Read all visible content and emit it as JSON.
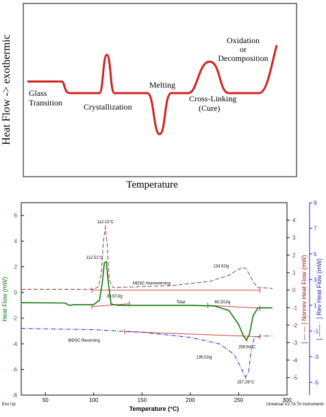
{
  "top_chart": {
    "ylabel": "Heat Flow -> exothermic",
    "xlabel": "Temperature",
    "annotations": {
      "glass": [
        "Glass",
        "Transition"
      ],
      "cryst": "Crystallization",
      "melt": "Melting",
      "cross": [
        "Cross-Linking",
        "(Cure)"
      ],
      "oxid": [
        "Oxidation",
        "or",
        "Decomposition"
      ]
    },
    "curve_color": "#d42020"
  },
  "chart_data": [
    {
      "type": "line",
      "title": "",
      "xlabel": "Temperature",
      "ylabel": "Heat Flow -> exothermic",
      "schematic": true,
      "series": [
        {
          "name": "",
          "points": [
            [
              0,
              0
            ],
            [
              7,
              0
            ],
            [
              9,
              -0.5
            ],
            [
              14,
              -0.5
            ],
            [
              16,
              2.8
            ],
            [
              18,
              -0.5
            ],
            [
              26,
              -0.5
            ],
            [
              29,
              -4.2
            ],
            [
              32,
              -0.5
            ],
            [
              38,
              -0.5
            ],
            [
              45,
              2.0
            ],
            [
              51,
              -0.5
            ],
            [
              55,
              -0.5
            ],
            [
              60,
              4.5
            ]
          ]
        }
      ]
    },
    {
      "type": "line",
      "xlabel": "Temperature (°C)",
      "ylabel": "Heat Flow (mW)",
      "ylabel_right1": "[ — — ] Nonrev Heat Flow (mW)",
      "ylabel_right2": "[ —— · ] Rev Heat Flow (mW)",
      "xlim": [
        25,
        300
      ],
      "ylim": [
        -8,
        7
      ],
      "ylim_right1": [
        -6,
        5
      ],
      "ylim_right2": [
        -6,
        9
      ],
      "x_ticks": [
        "50",
        "100",
        "150",
        "200",
        "250",
        "300"
      ],
      "y_ticks": [
        "6",
        "4",
        "2",
        "0",
        "-2",
        "-4",
        "-6",
        "-8"
      ],
      "y_ticks_right1": [
        "4",
        "3",
        "2",
        "1",
        "0",
        "-1",
        "-2",
        "-3",
        "-4",
        "-5"
      ],
      "y_ticks_right2": [
        "9",
        "7",
        "5",
        "3",
        "1",
        "-1",
        "-3",
        "-5"
      ],
      "footer_left": "Exo Up",
      "footer_right": "Universal V2.7A TA Instruments",
      "series": [
        {
          "name": "Total",
          "axis": "left",
          "color": "#0a7a0a",
          "points": [
            [
              25,
              -0.8
            ],
            [
              70,
              -0.82
            ],
            [
              75,
              -1.0
            ],
            [
              80,
              -0.95
            ],
            [
              100,
              -0.95
            ],
            [
              106,
              -0.6
            ],
            [
              109,
              0.8
            ],
            [
              111,
              2.3
            ],
            [
              113,
              2.4
            ],
            [
              115,
              0.8
            ],
            [
              118,
              -0.9
            ],
            [
              125,
              -1.0
            ],
            [
              140,
              -1.0
            ],
            [
              200,
              -1.0
            ],
            [
              225,
              -1.05
            ],
            [
              240,
              -1.4
            ],
            [
              250,
              -2.5
            ],
            [
              255,
              -3.4
            ],
            [
              258,
              -3.7
            ],
            [
              261,
              -3.3
            ],
            [
              265,
              -1.8
            ],
            [
              270,
              -1.2
            ],
            [
              285,
              -1.2
            ]
          ]
        },
        {
          "name": "MDSC Nonreversing",
          "axis": "right1",
          "color": "#8b3a3a",
          "points": [
            [
              25,
              0.05
            ],
            [
              100,
              0.05
            ],
            [
              105,
              0.2
            ],
            [
              108,
              1.0
            ],
            [
              110,
              2.8
            ],
            [
              112,
              3.6
            ],
            [
              114,
              2.6
            ],
            [
              116,
              0.6
            ],
            [
              120,
              0.15
            ],
            [
              180,
              0.25
            ],
            [
              220,
              0.5
            ],
            [
              240,
              0.85
            ],
            [
              250,
              1.2
            ],
            [
              255,
              1.3
            ],
            [
              258,
              1.2
            ],
            [
              262,
              0.8
            ],
            [
              266,
              0.4
            ],
            [
              270,
              0.15
            ],
            [
              285,
              0.1
            ]
          ]
        },
        {
          "name": "MDSC Reversing",
          "axis": "right2",
          "color": "#2020c8",
          "points": [
            [
              25,
              -0.8
            ],
            [
              60,
              -0.85
            ],
            [
              100,
              -0.9
            ],
            [
              150,
              -1.1
            ],
            [
              200,
              -1.5
            ],
            [
              230,
              -2.0
            ],
            [
              245,
              -2.8
            ],
            [
              252,
              -3.8
            ],
            [
              257,
              -4.6
            ],
            [
              260,
              -4.3
            ],
            [
              263,
              -2.5
            ],
            [
              266,
              -1.6
            ],
            [
              272,
              -1.4
            ],
            [
              285,
              -1.4
            ]
          ]
        },
        {
          "name": "baselines",
          "color": "#d04040",
          "baselines": [
            {
              "axis": "right1",
              "x1": 98,
              "y1": 0.0,
              "x2": 272,
              "y2": 0.0
            },
            {
              "axis": "left",
              "x1": 98,
              "y1": -1.1,
              "x2": 137,
              "y2": -0.88
            },
            {
              "axis": "left",
              "x1": 218,
              "y1": -1.0,
              "x2": 272,
              "y2": -1.22
            },
            {
              "axis": "right2",
              "x1": 132,
              "y1": -1.05,
              "x2": 272,
              "y2": -1.45
            }
          ]
        }
      ],
      "annotations": [
        {
          "text": "112.13°C",
          "axis": "right1",
          "x": 112.13,
          "y": 3.6
        },
        {
          "text": "112.51°C",
          "axis": "left",
          "x": 112.51,
          "y": 2.4
        },
        {
          "text": "MDSC Nonreversing",
          "axis": "right1",
          "x": 160,
          "y": 0.2
        },
        {
          "text": "134.6J/g",
          "axis": "right1",
          "x": 240,
          "y": 0.9
        },
        {
          "text": "33.57J/g",
          "axis": "left",
          "x": 112,
          "y": -0.5
        },
        {
          "text": "Total",
          "axis": "left",
          "x": 190,
          "y": -1.0
        },
        {
          "text": "60.20J/g",
          "axis": "left",
          "x": 240,
          "y": -1.0
        },
        {
          "text": "258.64°C",
          "axis": "left",
          "x": 258.64,
          "y": -3.7
        },
        {
          "text": "MDSC Reversing",
          "axis": "right2",
          "x": 90,
          "y": -1.2
        },
        {
          "text": "135.0J/g",
          "axis": "right2",
          "x": 200,
          "y": -2.5
        },
        {
          "text": "257.29°C",
          "axis": "right2",
          "x": 257.29,
          "y": -4.6
        }
      ]
    }
  ]
}
